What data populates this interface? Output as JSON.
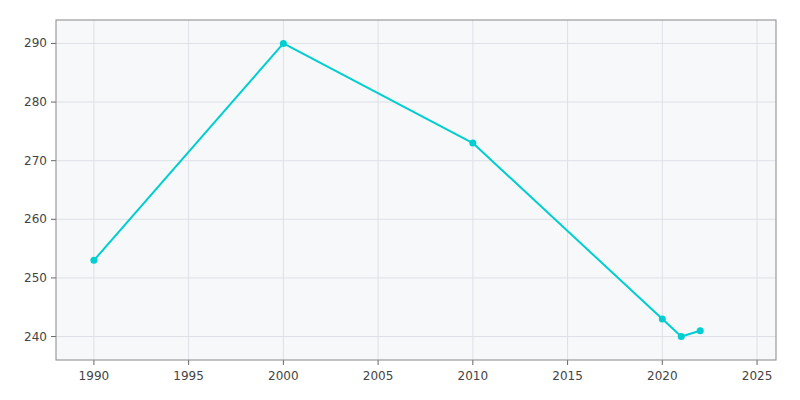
{
  "chart_data": {
    "type": "line",
    "x": [
      1990,
      2000,
      2010,
      2020,
      2021,
      2022
    ],
    "values": [
      253,
      290,
      273,
      243,
      240,
      241
    ],
    "color": "#00CED1",
    "marker": "circle",
    "xlim": [
      1988,
      2026
    ],
    "ylim": [
      236,
      294
    ],
    "xticks": [
      1990,
      1995,
      2000,
      2005,
      2010,
      2015,
      2020,
      2025
    ],
    "yticks": [
      240,
      250,
      260,
      270,
      280,
      290
    ],
    "grid": true
  }
}
